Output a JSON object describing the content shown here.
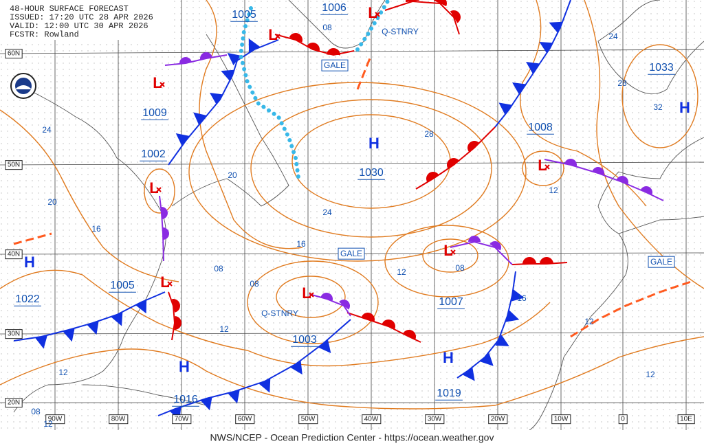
{
  "header": {
    "lines": [
      "48-HOUR SURFACE FORECAST",
      "ISSUED: 17:20 UTC 28 APR 2026",
      "VALID:  12:00 UTC 30 APR 2026",
      "FCSTR:  Rowland"
    ]
  },
  "footer": "NWS/NCEP - Ocean Prediction Center - https://ocean.weather.gov",
  "lat_labels": [
    "60N",
    "50N",
    "40N",
    "30N",
    "20N"
  ],
  "lon_labels": [
    "90W",
    "80W",
    "70W",
    "60W",
    "50W",
    "40W",
    "30W",
    "20W",
    "10W",
    "0",
    "10E"
  ],
  "pressure_labels": [
    "1005",
    "1006",
    "1033",
    "1009",
    "1008",
    "1002",
    "1030",
    "1005",
    "1022",
    "1007",
    "1003",
    "1016",
    "1019"
  ],
  "isobar_labels": [
    "08",
    "24",
    "28",
    "32",
    "24",
    "28",
    "20",
    "12",
    "20",
    "24",
    "16",
    "16",
    "12",
    "08",
    "08",
    "08",
    "16",
    "12",
    "12",
    "12",
    "12",
    "08",
    "12"
  ],
  "highs": [
    "H",
    "H",
    "H",
    "H",
    "H"
  ],
  "lows": [
    "L",
    "L",
    "L",
    "L",
    "L",
    "L",
    "L",
    "L"
  ],
  "warnings": [
    "GALE",
    "GALE",
    "GALE"
  ],
  "front_labels": [
    "Q-STNRY",
    "Q-STNRY"
  ]
}
